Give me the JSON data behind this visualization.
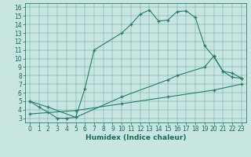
{
  "xlabel": "Humidex (Indice chaleur)",
  "xlim": [
    -0.5,
    23.5
  ],
  "ylim": [
    2.5,
    16.5
  ],
  "xticks": [
    0,
    1,
    2,
    3,
    4,
    5,
    6,
    7,
    8,
    9,
    10,
    11,
    12,
    13,
    14,
    15,
    16,
    17,
    18,
    19,
    20,
    21,
    22,
    23
  ],
  "yticks": [
    3,
    4,
    5,
    6,
    7,
    8,
    9,
    10,
    11,
    12,
    13,
    14,
    15,
    16
  ],
  "bg_color": "#c8e6e0",
  "line_color": "#2a7a6e",
  "curve1_x": [
    0,
    1,
    2,
    3,
    4,
    5,
    6,
    7,
    10,
    11,
    12,
    13,
    14,
    15,
    16,
    17,
    18,
    19,
    20,
    21,
    22,
    23
  ],
  "curve1_y": [
    5.0,
    4.3,
    3.7,
    3.0,
    3.0,
    3.1,
    6.5,
    11.0,
    13.0,
    14.0,
    15.2,
    15.7,
    14.4,
    14.5,
    15.5,
    15.6,
    14.8,
    11.5,
    10.2,
    8.5,
    8.3,
    7.7
  ],
  "curve2_x": [
    0,
    2,
    5,
    10,
    15,
    16,
    19,
    20,
    21,
    22,
    23
  ],
  "curve2_y": [
    5.0,
    4.3,
    3.1,
    5.5,
    7.5,
    8.0,
    9.0,
    10.3,
    8.5,
    7.8,
    7.7
  ],
  "curve3_x": [
    0,
    5,
    10,
    15,
    20,
    23
  ],
  "curve3_y": [
    3.5,
    3.9,
    4.7,
    5.5,
    6.3,
    7.0
  ],
  "font_color": "#1a6a5e",
  "tick_fontsize": 5.5,
  "xlabel_fontsize": 6.5
}
